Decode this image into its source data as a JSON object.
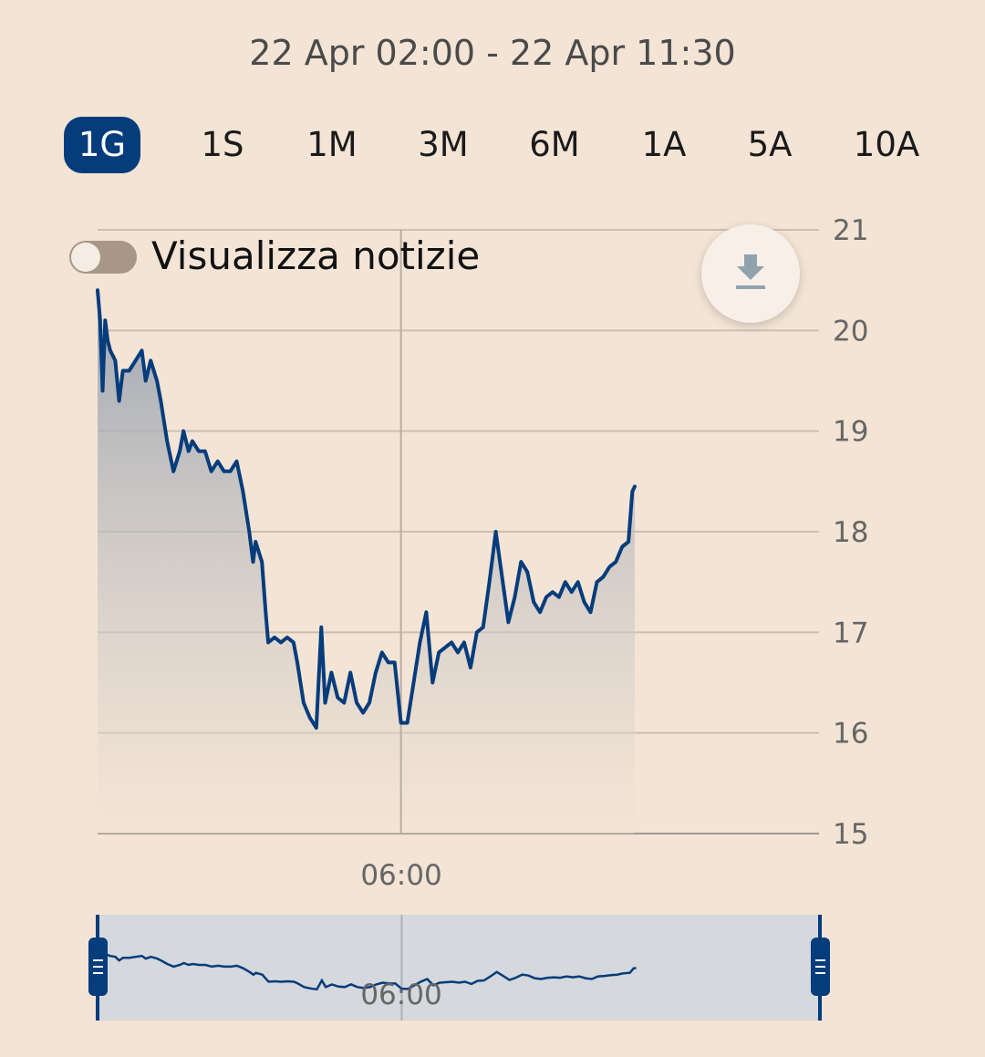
{
  "header": {
    "date_range": "22 Apr 02:00 - 22 Apr 11:30"
  },
  "periods": [
    {
      "label": "1G",
      "active": true
    },
    {
      "label": "1S",
      "active": false
    },
    {
      "label": "1M",
      "active": false
    },
    {
      "label": "3M",
      "active": false
    },
    {
      "label": "6M",
      "active": false
    },
    {
      "label": "1A",
      "active": false
    },
    {
      "label": "5A",
      "active": false
    },
    {
      "label": "10A",
      "active": false
    }
  ],
  "news_toggle": {
    "label": "Visualizza notizie",
    "on": false
  },
  "download": {
    "icon": "download-icon"
  },
  "colors": {
    "line": "#053c7c",
    "active_pill": "#053c7c",
    "background": "#f3e4d5"
  },
  "chart_data": {
    "type": "area",
    "title": "",
    "xlabel": "",
    "ylabel": "",
    "ylim": [
      15,
      21
    ],
    "y_ticks": [
      "21",
      "20",
      "19",
      "18",
      "17",
      "16",
      "15"
    ],
    "x_ticks": [
      {
        "time": "06:00",
        "label": "06:00"
      }
    ],
    "x_range": [
      "02:00",
      "11:30"
    ],
    "grid": true,
    "navigator": {
      "label": "06:00",
      "start": "02:00",
      "end": "11:30"
    },
    "series": [
      {
        "points": [
          [
            "02:00",
            20.4
          ],
          [
            "02:02",
            20.1
          ],
          [
            "02:04",
            19.4
          ],
          [
            "02:06",
            20.1
          ],
          [
            "02:08",
            19.9
          ],
          [
            "02:10",
            19.8
          ],
          [
            "02:14",
            19.7
          ],
          [
            "02:17",
            19.3
          ],
          [
            "02:20",
            19.6
          ],
          [
            "02:25",
            19.6
          ],
          [
            "02:30",
            19.7
          ],
          [
            "02:35",
            19.8
          ],
          [
            "02:38",
            19.5
          ],
          [
            "02:42",
            19.7
          ],
          [
            "02:47",
            19.5
          ],
          [
            "02:50",
            19.3
          ],
          [
            "02:55",
            18.9
          ],
          [
            "03:00",
            18.6
          ],
          [
            "03:05",
            18.8
          ],
          [
            "03:08",
            19.0
          ],
          [
            "03:12",
            18.8
          ],
          [
            "03:15",
            18.9
          ],
          [
            "03:20",
            18.8
          ],
          [
            "03:25",
            18.8
          ],
          [
            "03:30",
            18.6
          ],
          [
            "03:35",
            18.7
          ],
          [
            "03:40",
            18.6
          ],
          [
            "03:45",
            18.6
          ],
          [
            "03:50",
            18.7
          ],
          [
            "03:55",
            18.4
          ],
          [
            "04:00",
            18.0
          ],
          [
            "04:03",
            17.7
          ],
          [
            "04:05",
            17.9
          ],
          [
            "04:10",
            17.7
          ],
          [
            "04:13",
            17.2
          ],
          [
            "04:15",
            16.9
          ],
          [
            "04:20",
            16.95
          ],
          [
            "04:25",
            16.9
          ],
          [
            "04:30",
            16.95
          ],
          [
            "04:35",
            16.9
          ],
          [
            "04:38",
            16.7
          ],
          [
            "04:43",
            16.3
          ],
          [
            "04:48",
            16.15
          ],
          [
            "04:53",
            16.05
          ],
          [
            "04:57",
            17.05
          ],
          [
            "05:00",
            16.3
          ],
          [
            "05:05",
            16.6
          ],
          [
            "05:10",
            16.35
          ],
          [
            "05:15",
            16.3
          ],
          [
            "05:20",
            16.6
          ],
          [
            "05:25",
            16.3
          ],
          [
            "05:30",
            16.2
          ],
          [
            "05:35",
            16.3
          ],
          [
            "05:40",
            16.6
          ],
          [
            "05:45",
            16.8
          ],
          [
            "05:50",
            16.7
          ],
          [
            "05:55",
            16.7
          ],
          [
            "06:00",
            16.1
          ],
          [
            "06:05",
            16.1
          ],
          [
            "06:10",
            16.5
          ],
          [
            "06:15",
            16.9
          ],
          [
            "06:20",
            17.2
          ],
          [
            "06:25",
            16.5
          ],
          [
            "06:30",
            16.8
          ],
          [
            "06:35",
            16.85
          ],
          [
            "06:40",
            16.9
          ],
          [
            "06:45",
            16.8
          ],
          [
            "06:50",
            16.9
          ],
          [
            "06:55",
            16.65
          ],
          [
            "07:00",
            17.0
          ],
          [
            "07:05",
            17.05
          ],
          [
            "07:10",
            17.5
          ],
          [
            "07:15",
            18.0
          ],
          [
            "07:20",
            17.55
          ],
          [
            "07:25",
            17.1
          ],
          [
            "07:30",
            17.35
          ],
          [
            "07:35",
            17.7
          ],
          [
            "07:40",
            17.6
          ],
          [
            "07:45",
            17.3
          ],
          [
            "07:50",
            17.2
          ],
          [
            "07:55",
            17.35
          ],
          [
            "08:00",
            17.4
          ],
          [
            "08:05",
            17.35
          ],
          [
            "08:10",
            17.5
          ],
          [
            "08:15",
            17.4
          ],
          [
            "08:20",
            17.5
          ],
          [
            "08:25",
            17.3
          ],
          [
            "08:30",
            17.2
          ],
          [
            "08:35",
            17.5
          ],
          [
            "08:40",
            17.55
          ],
          [
            "08:45",
            17.65
          ],
          [
            "08:50",
            17.7
          ],
          [
            "08:55",
            17.85
          ],
          [
            "09:00",
            17.9
          ],
          [
            "09:03",
            18.4
          ],
          [
            "09:05",
            18.45
          ]
        ]
      }
    ]
  }
}
